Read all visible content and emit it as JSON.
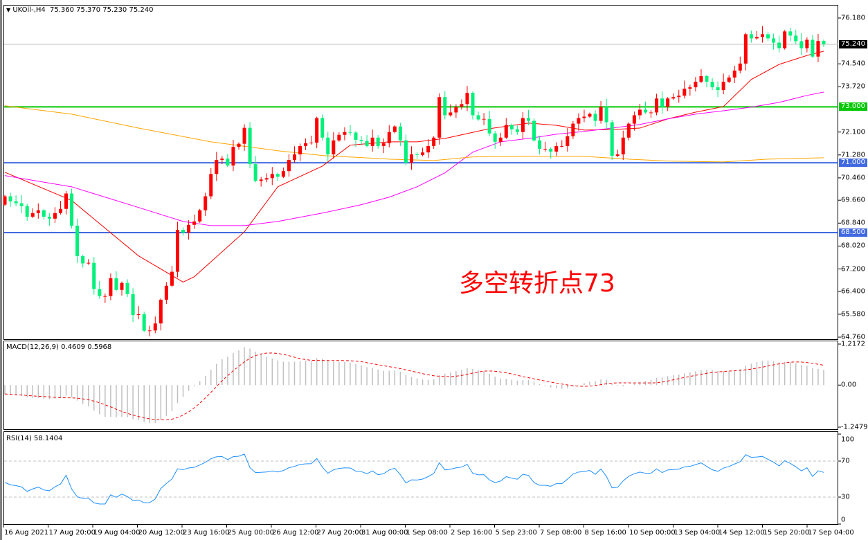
{
  "header": {
    "symbol_label": "UKOil-,H4",
    "ohlc": "75.360 75.370 75.230 75.240",
    "menu_icon": "triangle-down-icon"
  },
  "annotation": "多空转折点73",
  "price_axis": {
    "ticks": [
      "76.180",
      "74.540",
      "73.720",
      "72.100",
      "71.280",
      "70.460",
      "69.660",
      "68.840",
      "68.020",
      "67.200",
      "66.400",
      "65.580",
      "64.760"
    ],
    "current_price": 75.24,
    "current_price_label": "75.240"
  },
  "levels": [
    {
      "price": 73.0,
      "label": "73.000",
      "color": "#00c800"
    },
    {
      "price": 71.0,
      "label": "71.000",
      "color": "#4169e1"
    },
    {
      "price": 68.5,
      "label": "68.500",
      "color": "#4169e1"
    }
  ],
  "macd": {
    "label": "MACD(12,26,9) 0.4609 0.5968",
    "ticks": [
      "1.2172",
      "0.00",
      "-1.2479"
    ],
    "ylim": [
      -1.2479,
      1.2172
    ],
    "histogram_color": "#c0c0c0",
    "signal_color": "#ff0000"
  },
  "rsi": {
    "label": "RSI(14) 58.1404",
    "ticks": [
      "100",
      "70",
      "30",
      "0"
    ],
    "levels": [
      70,
      30
    ],
    "color": "#1e90ff"
  },
  "time_axis": [
    "16 Aug 2021",
    "17 Aug 20:00",
    "19 Aug 04:00",
    "20 Aug 12:00",
    "23 Aug 16:00",
    "25 Aug 00:00",
    "26 Aug 12:00",
    "27 Aug 20:00",
    "31 Aug 00:00",
    "1 Sep 08:00",
    "2 Sep 16:00",
    "5 Sep 23:00",
    "7 Sep 08:00",
    "8 Sep 16:00",
    "10 Sep 00:00",
    "13 Sep 04:00",
    "14 Sep 12:00",
    "15 Sep 20:00",
    "17 Sep 04:00"
  ],
  "chart_data": {
    "type": "candlestick",
    "symbol": "UKOil-",
    "timeframe": "H4",
    "ylim": [
      64.76,
      76.18
    ],
    "up_color": "#ff0000",
    "down_color": "#00f07a",
    "closes": [
      69.8,
      69.62,
      69.55,
      69.45,
      69.07,
      69.2,
      69.3,
      69.07,
      69.0,
      69.2,
      69.35,
      69.9,
      68.75,
      67.66,
      67.4,
      67.42,
      66.48,
      66.23,
      66.23,
      66.87,
      66.45,
      66.7,
      66.3,
      65.55,
      65.58,
      64.99,
      65.0,
      65.25,
      66.1,
      66.6,
      67.1,
      68.6,
      68.5,
      68.78,
      68.9,
      69.3,
      69.8,
      70.6,
      71.1,
      71.15,
      70.9,
      71.57,
      71.68,
      72.25,
      70.95,
      70.35,
      70.4,
      70.45,
      70.6,
      70.5,
      70.7,
      71.1,
      71.3,
      71.6,
      71.7,
      71.72,
      72.6,
      71.9,
      71.3,
      71.8,
      72.0,
      72.1,
      72.08,
      71.82,
      71.78,
      71.6,
      71.9,
      71.6,
      71.7,
      72.1,
      72.3,
      71.8,
      71.0,
      71.3,
      71.28,
      71.37,
      71.6,
      71.9,
      73.35,
      72.7,
      72.8,
      73.0,
      73.1,
      73.5,
      72.7,
      72.55,
      72.57,
      72.05,
      71.75,
      71.9,
      72.35,
      72.2,
      72.1,
      72.6,
      72.5,
      71.8,
      71.5,
      71.5,
      71.4,
      71.6,
      71.6,
      71.95,
      72.4,
      72.6,
      72.65,
      72.75,
      72.5,
      73.0,
      72.45,
      71.25,
      71.3,
      71.9,
      72.4,
      72.7,
      72.9,
      72.8,
      72.8,
      73.3,
      73.0,
      73.3,
      73.35,
      73.4,
      73.65,
      73.7,
      73.9,
      74.1,
      73.9,
      73.7,
      73.6,
      73.9,
      74.05,
      74.3,
      74.55,
      75.6,
      75.45,
      75.5,
      75.6,
      75.45,
      75.3,
      75.1,
      75.7,
      75.55,
      75.35,
      75.1,
      75.4,
      74.8,
      75.36,
      75.24
    ],
    "moving_averages": [
      {
        "color": "#ff0000",
        "points": [
          [
            0,
            70.66
          ],
          [
            12,
            69.65
          ],
          [
            24,
            67.67
          ],
          [
            32,
            66.73
          ],
          [
            34,
            66.92
          ],
          [
            43,
            68.53
          ],
          [
            49,
            70.14
          ],
          [
            57,
            70.88
          ],
          [
            62,
            71.63
          ],
          [
            69,
            71.75
          ],
          [
            74,
            71.75
          ],
          [
            79,
            71.87
          ],
          [
            87,
            72.22
          ],
          [
            94,
            72.42
          ],
          [
            99,
            72.34
          ],
          [
            104,
            72.17
          ],
          [
            109,
            72.19
          ],
          [
            114,
            72.24
          ],
          [
            119,
            72.57
          ],
          [
            124,
            72.81
          ],
          [
            129,
            73.01
          ],
          [
            134,
            73.98
          ],
          [
            139,
            74.52
          ],
          [
            144,
            74.84
          ],
          [
            147,
            74.99
          ]
        ]
      },
      {
        "color": "#ff00ff",
        "points": [
          [
            0,
            70.54
          ],
          [
            12,
            70.14
          ],
          [
            24,
            69.4
          ],
          [
            32,
            68.9
          ],
          [
            37,
            68.75
          ],
          [
            43,
            68.75
          ],
          [
            49,
            68.9
          ],
          [
            57,
            69.2
          ],
          [
            64,
            69.5
          ],
          [
            69,
            69.77
          ],
          [
            74,
            70.14
          ],
          [
            79,
            70.64
          ],
          [
            84,
            71.38
          ],
          [
            89,
            71.75
          ],
          [
            94,
            71.87
          ],
          [
            99,
            72.02
          ],
          [
            104,
            72.12
          ],
          [
            109,
            72.24
          ],
          [
            114,
            72.37
          ],
          [
            119,
            72.57
          ],
          [
            124,
            72.74
          ],
          [
            129,
            72.86
          ],
          [
            134,
            72.99
          ],
          [
            139,
            73.16
          ],
          [
            144,
            73.41
          ],
          [
            147,
            73.53
          ]
        ]
      },
      {
        "color": "#ffa500",
        "points": [
          [
            0,
            73.04
          ],
          [
            12,
            72.74
          ],
          [
            24,
            72.24
          ],
          [
            37,
            71.75
          ],
          [
            49,
            71.43
          ],
          [
            57,
            71.26
          ],
          [
            69,
            71.13
          ],
          [
            77,
            71.08
          ],
          [
            84,
            71.21
          ],
          [
            94,
            71.23
          ],
          [
            104,
            71.23
          ],
          [
            112,
            71.13
          ],
          [
            119,
            71.06
          ],
          [
            129,
            71.03
          ],
          [
            137,
            71.13
          ],
          [
            147,
            71.18
          ]
        ]
      }
    ]
  }
}
